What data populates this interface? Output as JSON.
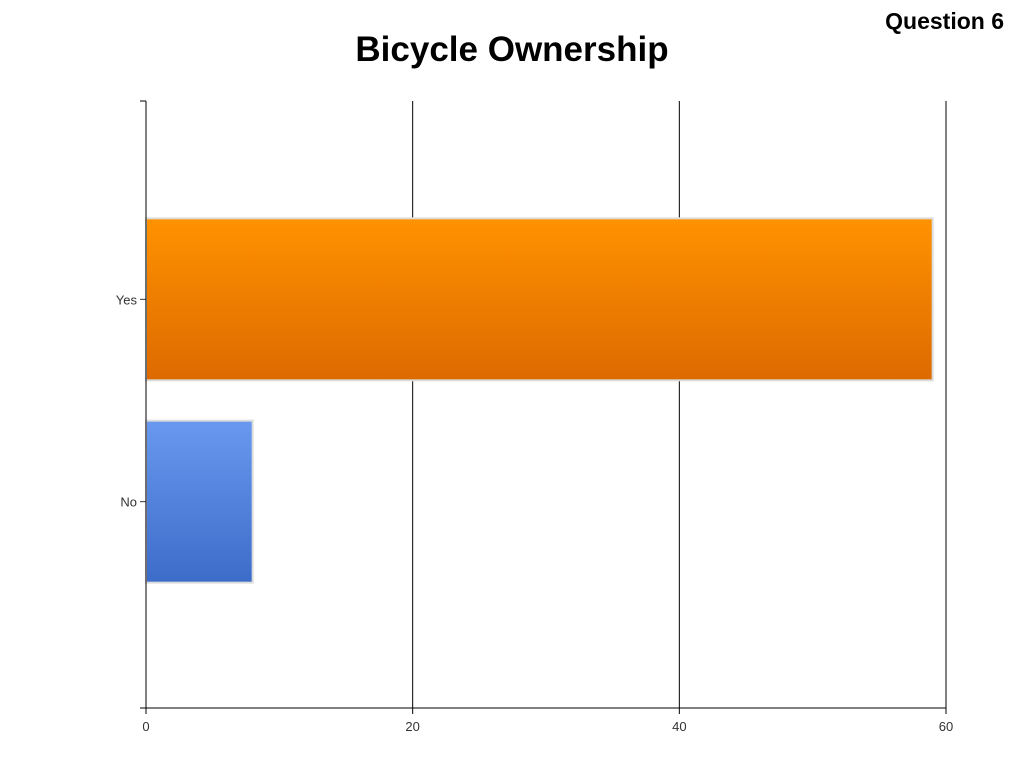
{
  "header": {
    "question": "Question 6",
    "title": "Bicycle Ownership"
  },
  "chart_data": {
    "type": "bar",
    "orientation": "horizontal",
    "title": "Bicycle Ownership",
    "categories": [
      "Yes",
      "No"
    ],
    "values": [
      59,
      8
    ],
    "colors": [
      "#f08400",
      "#4f7fdc"
    ],
    "xlabel": "",
    "ylabel": "",
    "xlim": [
      0,
      60
    ],
    "xticks": [
      0,
      20,
      40,
      60
    ],
    "grid": true,
    "legend": "none"
  }
}
